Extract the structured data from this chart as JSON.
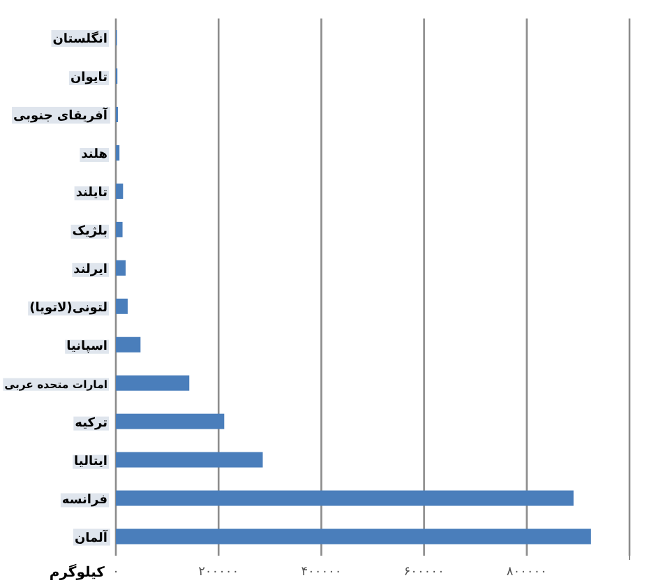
{
  "chart_data": {
    "type": "bar",
    "orientation": "horizontal",
    "xlabel": "کیلوگرم",
    "categories": [
      "انگلستان",
      "تایوان",
      "آفریقای جنوبی",
      "هلند",
      "تایلند",
      "بلژیک",
      "ایرلند",
      "(لاتویا)لتونی",
      "اسپانیا",
      "امارات متحده عربی",
      "ترکیه",
      "ایتالیا",
      "فرانسه",
      "آلمان"
    ],
    "values": [
      2000,
      3000,
      4000,
      7000,
      14000,
      13000,
      19000,
      23000,
      48000,
      143000,
      211000,
      286000,
      891000,
      925000
    ],
    "color": "#4a7ebb",
    "xlim": [
      0,
      1000000
    ],
    "xticks": [
      {
        "value": 0,
        "label": "۰"
      },
      {
        "value": 200000,
        "label": "۲۰۰۰۰۰"
      },
      {
        "value": 400000,
        "label": "۴۰۰۰۰۰"
      },
      {
        "value": 600000,
        "label": "۶۰۰۰۰۰"
      },
      {
        "value": 800000,
        "label": "۸۰۰۰۰۰"
      },
      {
        "value": 1000000,
        "label": null
      }
    ],
    "grid": "x"
  }
}
